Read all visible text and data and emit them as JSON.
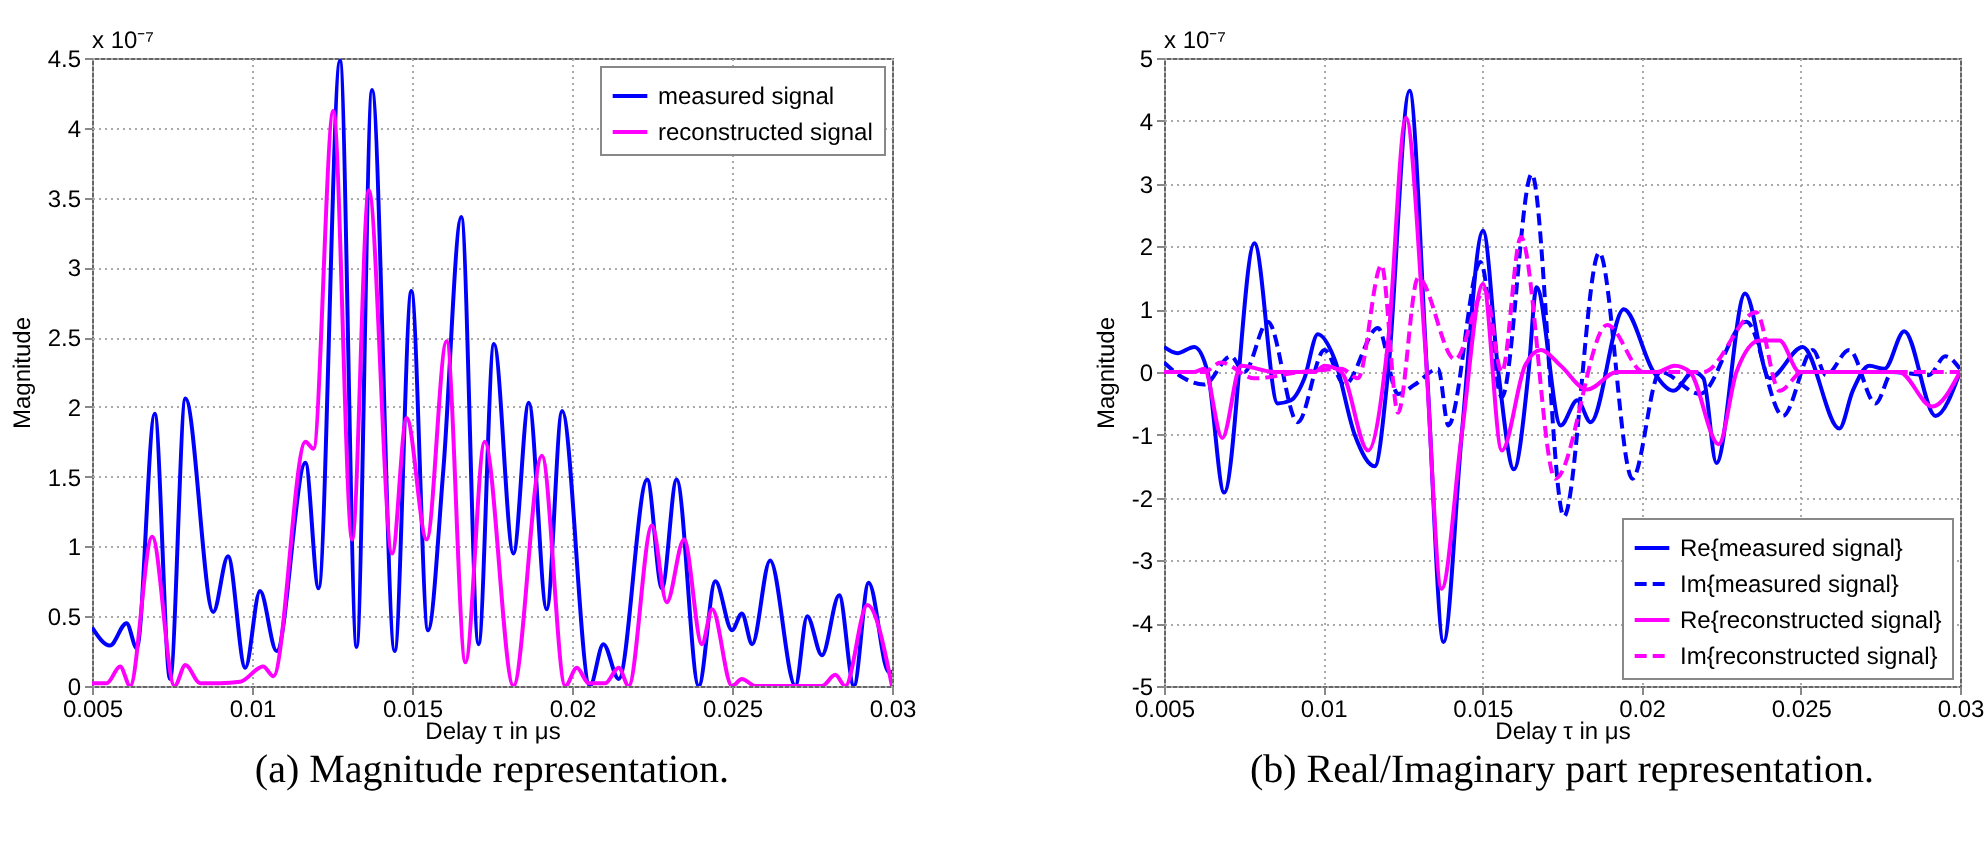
{
  "chart_data": [
    {
      "type": "line",
      "xlabel": "Delay τ in μs",
      "ylabel": "Magnitude",
      "xlim": [
        0.005,
        0.03
      ],
      "xticks": [
        0.005,
        0.01,
        0.015,
        0.02,
        0.025,
        0.03
      ],
      "ylim": [
        0,
        4.5
      ],
      "yticks": [
        0,
        0.5,
        1,
        1.5,
        2,
        2.5,
        3,
        3.5,
        4,
        4.5
      ],
      "grid": true,
      "legend": "top right",
      "annotations": [
        "x 10⁻⁷",
        "(a) Magnitude representation."
      ],
      "series": [
        {
          "name": "measured signal",
          "color": "#0000ff",
          "x": [
            0.005,
            0.00556,
            0.00608,
            0.0064,
            0.00696,
            0.00744,
            0.00792,
            0.00879,
            0.00925,
            0.00979,
            0.01025,
            0.01077,
            0.01167,
            0.01208,
            0.01275,
            0.01327,
            0.01375,
            0.01446,
            0.01498,
            0.0155,
            0.01598,
            0.01654,
            0.01708,
            0.01756,
            0.01817,
            0.01865,
            0.01921,
            0.01969,
            0.02056,
            0.02098,
            0.02146,
            0.02235,
            0.02281,
            0.02327,
            0.02396,
            0.02448,
            0.025,
            0.02531,
            0.02563,
            0.02619,
            0.02698,
            0.02735,
            0.02781,
            0.02835,
            0.02881,
            0.02927,
            0.0299,
            0.03
          ],
          "values": [
            0.42,
            0.29,
            0.45,
            0.27,
            1.95,
            0.05,
            2.06,
            0.53,
            0.93,
            0.13,
            0.68,
            0.25,
            1.6,
            0.7,
            4.48,
            0.28,
            4.27,
            0.25,
            2.83,
            0.4,
            1.55,
            3.36,
            0.3,
            2.45,
            0.95,
            2.03,
            0.55,
            1.97,
            0,
            0.3,
            0.05,
            1.48,
            0.7,
            1.48,
            0,
            0.75,
            0.4,
            0.52,
            0.3,
            0.9,
            0,
            0.5,
            0.22,
            0.65,
            0,
            0.74,
            0.1,
            0.1
          ]
        },
        {
          "name": "reconstructed signal",
          "color": "#ff00ff",
          "x": [
            0.005,
            0.00546,
            0.00588,
            0.00619,
            0.00688,
            0.00758,
            0.00792,
            0.00838,
            0.009,
            0.00963,
            0.01035,
            0.01067,
            0.01167,
            0.01192,
            0.01254,
            0.01313,
            0.01365,
            0.01438,
            0.01483,
            0.01546,
            0.01608,
            0.01667,
            0.01727,
            0.01817,
            0.01906,
            0.01979,
            0.02015,
            0.02052,
            0.02104,
            0.02146,
            0.02177,
            0.0225,
            0.02296,
            0.0235,
            0.02406,
            0.02438,
            0.025,
            0.02531,
            0.02573,
            0.02781,
            0.02823,
            0.02854,
            0.02923,
            0.03
          ],
          "values": [
            0.02,
            0.02,
            0.14,
            0,
            1.07,
            0,
            0.15,
            0.02,
            0.02,
            0.03,
            0.14,
            0.07,
            1.75,
            1.7,
            4.12,
            1.05,
            3.55,
            0.95,
            1.92,
            1.05,
            2.47,
            0.17,
            1.75,
            0,
            1.65,
            0,
            0.13,
            0.02,
            0.02,
            0.13,
            0,
            1.15,
            0.6,
            1.05,
            0.3,
            0.55,
            0,
            0.05,
            0,
            0,
            0.08,
            0,
            0.58,
            0
          ]
        }
      ]
    },
    {
      "type": "line",
      "xlabel": "Delay τ in μs",
      "ylabel": "Magnitude",
      "xlim": [
        0.005,
        0.03
      ],
      "xticks": [
        0.005,
        0.01,
        0.015,
        0.02,
        0.025,
        0.03
      ],
      "ylim": [
        -5,
        5
      ],
      "yticks": [
        -5,
        -4,
        -3,
        -2,
        -1,
        0,
        1,
        2,
        3,
        4,
        5
      ],
      "grid": true,
      "legend": "bottom right",
      "annotations": [
        "x 10⁻⁷",
        "(b) Real/Imaginary part representation."
      ],
      "series": [
        {
          "name": "Re{measured signal}",
          "color": "#0000ff",
          "x": [
            0.005,
            0.00542,
            0.00595,
            0.00637,
            0.00689,
            0.00784,
            0.00857,
            0.00899,
            0.00941,
            0.00983,
            0.01036,
            0.01099,
            0.01162,
            0.01204,
            0.01271,
            0.01326,
            0.01378,
            0.01435,
            0.01502,
            0.0155,
            0.01599,
            0.01645,
            0.0167,
            0.01746,
            0.01798,
            0.0184,
            0.01944,
            0.02038,
            0.021,
            0.02163,
            0.02194,
            0.02235,
            0.02325,
            0.02402,
            0.02506,
            0.02621,
            0.02663,
            0.02715,
            0.02763,
            0.02825,
            0.02923,
            0.03
          ],
          "values": [
            0.4,
            0.3,
            0.4,
            0,
            -1.92,
            2.05,
            -0.5,
            -0.45,
            -0.1,
            0.6,
            0.2,
            -1,
            -1.5,
            0,
            4.48,
            0,
            -4.3,
            -1,
            2.25,
            0,
            -1.55,
            0,
            1.35,
            -0.85,
            -0.45,
            -0.8,
            1,
            0,
            -0.3,
            0,
            -0.1,
            -1.45,
            1.25,
            -0.1,
            0.4,
            -0.9,
            -0.3,
            0.1,
            0.05,
            0.65,
            -0.7,
            0
          ]
        },
        {
          "name": "Im{measured signal}",
          "color": "#0000ff",
          "line_style": "dashed",
          "x": [
            0.005,
            0.00563,
            0.00626,
            0.0071,
            0.00752,
            0.00826,
            0.0092,
            0.01004,
            0.01067,
            0.01172,
            0.01235,
            0.01288,
            0.01361,
            0.01393,
            0.01494,
            0.01561,
            0.01655,
            0.01756,
            0.01867,
            0.01971,
            0.02058,
            0.02183,
            0.02329,
            0.02444,
            0.02538,
            0.02579,
            0.02652,
            0.02735,
            0.02788,
            0.02902,
            0.02954,
            0.03
          ],
          "values": [
            0.15,
            -0.1,
            -0.2,
            0.25,
            0,
            0.8,
            -0.8,
            0.35,
            -0.2,
            0.7,
            -0.35,
            -0.2,
            0.05,
            -0.85,
            1.75,
            -0.4,
            3.15,
            -2.3,
            1.9,
            -1.7,
            0,
            -0.35,
            0.8,
            -0.7,
            0.35,
            -0.05,
            0.35,
            -0.5,
            0,
            -0.05,
            0.25,
            0.05
          ]
        },
        {
          "name": "Re{reconstructed signal}",
          "color": "#ff00ff",
          "x": [
            0.005,
            0.00595,
            0.00626,
            0.00683,
            0.00742,
            0.00847,
            0.00973,
            0.01004,
            0.01057,
            0.01141,
            0.01204,
            0.0126,
            0.01319,
            0.01372,
            0.01435,
            0.01502,
            0.01561,
            0.01634,
            0.01683,
            0.01746,
            0.01829,
            0.01923,
            0.02048,
            0.02104,
            0.02152,
            0.02242,
            0.02298,
            0.02371,
            0.02433,
            0.02496,
            0.02808,
            0.02913,
            0.03
          ],
          "values": [
            0,
            0,
            0.05,
            -1.05,
            0.1,
            0,
            0,
            0.1,
            0,
            -1.25,
            0.5,
            4.05,
            0.5,
            -3.45,
            -1,
            1.4,
            -1.25,
            0.1,
            0.35,
            0.1,
            -0.28,
            0,
            0,
            0.1,
            0,
            -1.15,
            0,
            0.5,
            0.5,
            0,
            0,
            -0.55,
            0
          ]
        },
        {
          "name": "Im{reconstructed signal}",
          "color": "#ff00ff",
          "line_style": "dashed",
          "x": [
            0.005,
            0.00626,
            0.00679,
            0.00784,
            0.00931,
            0.01057,
            0.01109,
            0.01183,
            0.01235,
            0.01298,
            0.01414,
            0.01508,
            0.01561,
            0.01621,
            0.01729,
            0.01892,
            0.02006,
            0.02194,
            0.0236,
            0.02433,
            0.02506,
            0.03
          ],
          "values": [
            0,
            0,
            0.15,
            -0.1,
            0,
            0.05,
            -0.1,
            1.7,
            -0.65,
            1.5,
            0.2,
            1.3,
            0,
            2.15,
            -1.7,
            0.75,
            0,
            0,
            0.95,
            -0.3,
            0,
            0
          ]
        }
      ]
    }
  ]
}
